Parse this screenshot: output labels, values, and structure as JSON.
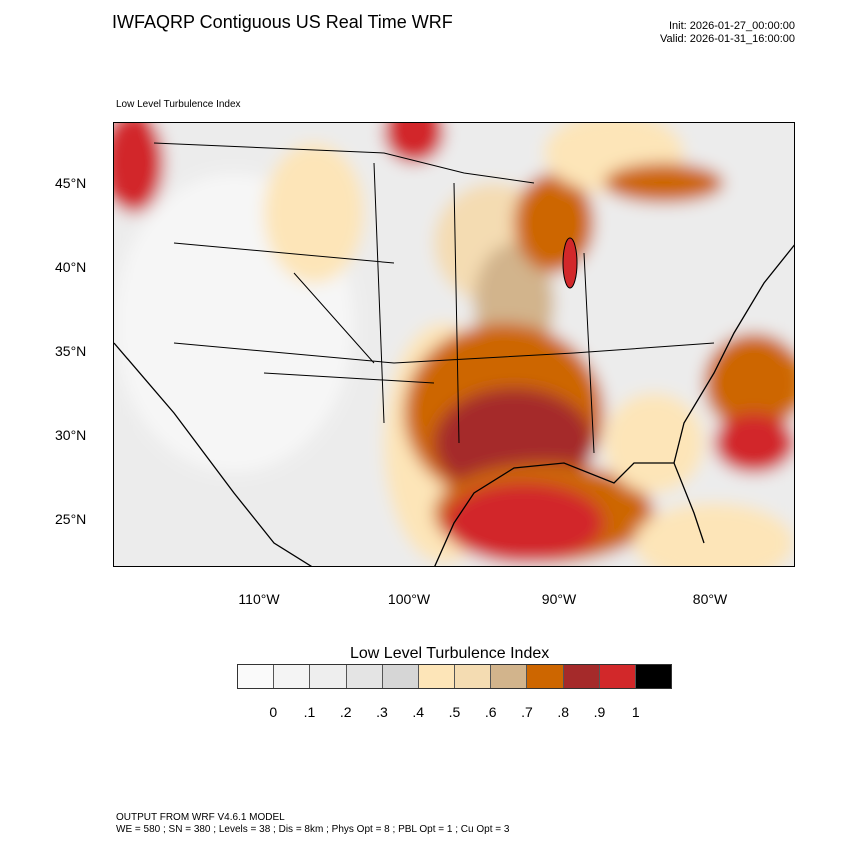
{
  "header": {
    "title": "IWFAQRP Contiguous US Real Time WRF",
    "init": "Init: 2026-01-27_00:00:00",
    "valid": "Valid: 2026-01-31_16:00:00"
  },
  "map": {
    "subtitle": "Low Level Turbulence Index",
    "lat_labels": [
      "45°N",
      "40°N",
      "35°N",
      "30°N",
      "25°N"
    ],
    "lon_labels": [
      "110°W",
      "100°W",
      "90°W",
      "80°W"
    ]
  },
  "colorbar": {
    "title": "Low Level Turbulence Index",
    "colors": [
      "#fafafa",
      "#f4f4f4",
      "#eeeeee",
      "#e4e4e4",
      "#d6d6d6",
      "#fde5b8",
      "#f4dcb2",
      "#d2b48c",
      "#cd6600",
      "#a52a2a",
      "#d2282a",
      "#000000"
    ],
    "labels": [
      "0",
      ".1",
      ".2",
      ".3",
      ".4",
      ".5",
      ".6",
      ".7",
      ".8",
      ".9",
      "1"
    ]
  },
  "footer": {
    "line1": "OUTPUT FROM WRF V4.6.1 MODEL",
    "line2": "WE = 580 ; SN = 380 ; Levels = 38 ; Dis = 8km ; Phys Opt = 8 ; PBL Opt = 1 ; Cu Opt = 3"
  }
}
